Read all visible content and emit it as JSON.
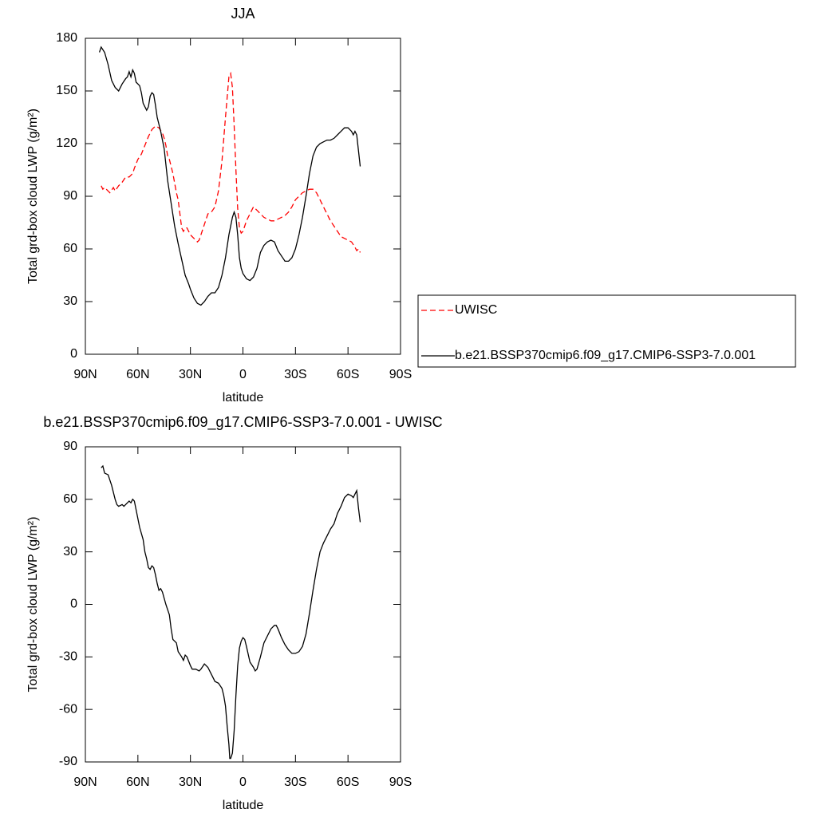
{
  "chart_data": [
    {
      "type": "line",
      "title": "JJA",
      "ylabel": "Total grd-box cloud LWP (g/m²)",
      "xlabel": "latitude",
      "xlim": [
        90,
        -90
      ],
      "xticks": [
        {
          "value": 90,
          "label": "90N"
        },
        {
          "value": 60,
          "label": "60N"
        },
        {
          "value": 30,
          "label": "30N"
        },
        0,
        {
          "value": -30,
          "label": "30S"
        },
        {
          "value": -60,
          "label": "60S"
        },
        {
          "value": -90,
          "label": "90S"
        }
      ],
      "ylim": [
        0,
        180
      ],
      "yticks": [
        0,
        30,
        60,
        90,
        120,
        150,
        180
      ],
      "legend": "right",
      "series": [
        {
          "name": "UWISC",
          "color": "#ff0000",
          "dashed": true,
          "x": [
            81,
            80,
            79,
            77,
            76,
            74,
            73,
            71,
            69,
            67,
            65,
            63,
            62,
            60,
            58,
            56,
            54,
            52,
            50,
            48,
            46,
            45,
            44,
            43,
            42,
            40,
            38,
            37,
            36,
            35,
            34,
            33,
            32,
            31,
            30,
            28,
            26,
            25,
            24,
            22,
            20,
            18,
            16,
            14,
            12,
            10,
            8,
            7,
            6,
            5,
            4,
            3,
            2,
            1,
            0,
            -2,
            -4,
            -6,
            -8,
            -10,
            -12,
            -14,
            -16,
            -18,
            -20,
            -22,
            -24,
            -26,
            -28,
            -30,
            -32,
            -34,
            -36,
            -38,
            -40,
            -42,
            -44,
            -46,
            -48,
            -50,
            -52,
            -54,
            -56,
            -58,
            -60,
            -62,
            -64,
            -65,
            -66,
            -67
          ],
          "values": [
            96,
            94,
            95,
            93,
            92,
            95,
            93,
            96,
            98,
            101,
            101,
            103,
            106,
            111,
            114,
            119,
            124,
            128,
            130,
            129,
            126,
            123,
            119,
            113,
            111,
            103,
            92,
            88,
            80,
            72,
            70,
            72,
            72,
            70,
            68,
            66,
            64,
            65,
            68,
            74,
            80,
            81,
            84,
            93,
            110,
            135,
            158,
            160,
            152,
            130,
            105,
            83,
            72,
            69,
            70,
            76,
            80,
            84,
            82,
            80,
            78,
            77,
            76,
            76,
            77,
            78,
            79,
            81,
            84,
            88,
            90,
            92,
            93,
            94,
            94,
            92,
            88,
            84,
            80,
            76,
            73,
            70,
            67,
            66,
            65,
            64,
            61,
            59,
            60,
            58
          ]
        },
        {
          "name": "b.e21.BSSP370cmip6.f09_g17.CMIP6-SSP3-7.0.001",
          "color": "#000000",
          "dashed": false,
          "x": [
            82,
            81,
            79,
            77,
            75,
            73,
            71,
            69,
            67,
            66,
            65,
            64,
            63,
            62,
            61,
            59,
            58,
            57,
            56,
            55,
            54,
            53,
            52,
            51,
            50,
            49,
            47,
            45,
            43,
            41,
            39,
            37,
            35,
            33,
            31,
            30,
            28,
            26,
            24,
            22,
            20,
            18,
            16,
            14,
            12,
            10,
            8,
            6,
            5,
            4,
            3,
            2,
            1,
            0,
            -2,
            -4,
            -6,
            -8,
            -10,
            -12,
            -14,
            -16,
            -18,
            -20,
            -22,
            -24,
            -26,
            -28,
            -30,
            -32,
            -34,
            -36,
            -38,
            -40,
            -42,
            -44,
            -46,
            -48,
            -50,
            -52,
            -54,
            -56,
            -58,
            -60,
            -62,
            -63,
            -64,
            -65,
            -66,
            -67
          ],
          "values": [
            172,
            175,
            172,
            165,
            156,
            152,
            150,
            154,
            157,
            158,
            161,
            158,
            162,
            160,
            155,
            153,
            149,
            143,
            141,
            139,
            141,
            147,
            149,
            148,
            142,
            135,
            127,
            117,
            99,
            86,
            73,
            63,
            54,
            45,
            40,
            37,
            32,
            29,
            28,
            30,
            33,
            35,
            35,
            38,
            45,
            55,
            68,
            78,
            81,
            78,
            68,
            55,
            49,
            46,
            43,
            42,
            44,
            49,
            58,
            62,
            64,
            65,
            64,
            59,
            56,
            53,
            53,
            55,
            60,
            68,
            78,
            90,
            103,
            113,
            118,
            120,
            121,
            122,
            122,
            123,
            125,
            127,
            129,
            129,
            127,
            125,
            127,
            125,
            116,
            107
          ]
        }
      ]
    },
    {
      "type": "line",
      "title": "b.e21.BSSP370cmip6.f09_g17.CMIP6-SSP3-7.0.001 - UWISC",
      "ylabel": "Total grd-box cloud LWP (g/m²)",
      "xlabel": "latitude",
      "xlim": [
        90,
        -90
      ],
      "xticks": [
        {
          "value": 90,
          "label": "90N"
        },
        {
          "value": 60,
          "label": "60N"
        },
        {
          "value": 30,
          "label": "30N"
        },
        0,
        {
          "value": -30,
          "label": "30S"
        },
        {
          "value": -60,
          "label": "60S"
        },
        {
          "value": -90,
          "label": "90S"
        }
      ],
      "ylim": [
        -90,
        90
      ],
      "yticks": [
        -90,
        -60,
        -30,
        0,
        30,
        60,
        90
      ],
      "series": [
        {
          "color": "#000000",
          "dashed": false,
          "x": [
            81,
            80,
            79,
            77,
            75,
            73,
            72,
            71,
            69,
            68,
            66,
            65,
            64,
            63,
            62,
            61,
            59,
            57,
            56,
            55,
            54,
            53,
            52,
            51,
            50,
            49,
            48,
            47,
            46,
            44,
            42,
            41,
            40,
            38,
            37,
            35,
            34,
            33,
            32,
            30,
            29,
            27,
            25,
            24,
            22,
            20,
            18,
            16,
            14,
            12,
            11,
            10,
            9,
            8,
            7.5,
            7,
            6,
            5,
            4,
            3,
            2,
            1,
            0,
            -1,
            -2,
            -4,
            -6,
            -7,
            -8,
            -10,
            -12,
            -14,
            -16,
            -18,
            -19,
            -20,
            -22,
            -24,
            -26,
            -28,
            -30,
            -32,
            -34,
            -36,
            -38,
            -40,
            -42,
            -44,
            -46,
            -48,
            -50,
            -52,
            -54,
            -56,
            -58,
            -60,
            -62,
            -63,
            -64,
            -65,
            -66,
            -67
          ],
          "values": [
            78,
            79,
            75,
            74,
            68,
            60,
            57,
            56,
            57,
            56,
            58,
            59,
            58,
            60,
            59,
            54,
            44,
            37,
            30,
            26,
            21,
            20,
            22,
            21,
            17,
            12,
            8,
            9,
            7,
            0,
            -6,
            -14,
            -20,
            -22,
            -27,
            -30,
            -32,
            -29,
            -30,
            -35,
            -37,
            -37,
            -38,
            -37,
            -34,
            -36,
            -40,
            -44,
            -45,
            -48,
            -52,
            -58,
            -70,
            -80,
            -88,
            -88,
            -85,
            -72,
            -52,
            -35,
            -25,
            -21,
            -19,
            -20,
            -24,
            -33,
            -36,
            -38,
            -37,
            -30,
            -22,
            -18,
            -14,
            -12,
            -12,
            -14,
            -19,
            -23,
            -26,
            -28,
            -28,
            -27,
            -24,
            -17,
            -5,
            8,
            20,
            30,
            35,
            39,
            43,
            46,
            52,
            56,
            61,
            63,
            62,
            61,
            63,
            65,
            55,
            47
          ]
        }
      ]
    }
  ]
}
